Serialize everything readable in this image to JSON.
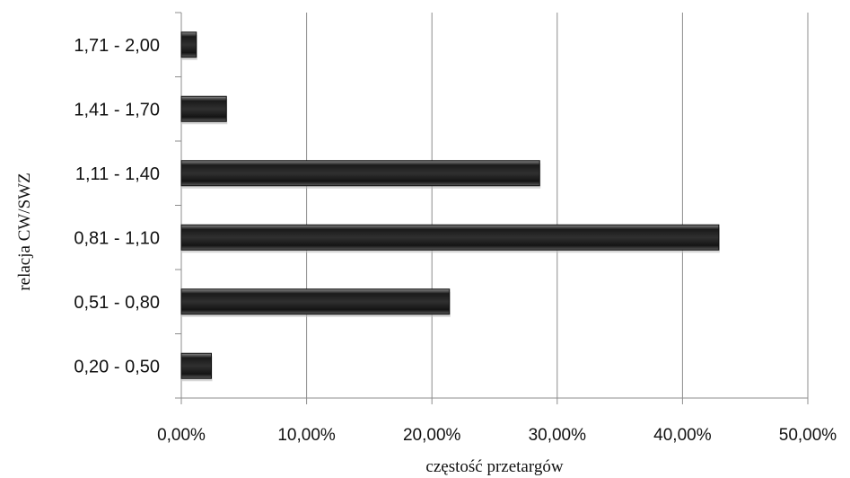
{
  "chart_data": {
    "type": "bar",
    "orientation": "horizontal",
    "title": "",
    "xlabel": "częstość przetargów",
    "ylabel": "relacja CW/SWZ",
    "categories": [
      "0,20 - 0,50",
      "0,51 - 0,80",
      "0,81 - 1,10",
      "1,11 - 1,40",
      "1,41 - 1,70",
      "1,71 - 2,00"
    ],
    "values": [
      2.4,
      21.4,
      42.9,
      28.6,
      3.6,
      1.2
    ],
    "xlim": [
      0,
      50
    ],
    "xticks": [
      0,
      10,
      20,
      30,
      40,
      50
    ],
    "xtick_labels": [
      "0,00%",
      "10,00%",
      "20,00%",
      "30,00%",
      "40,00%",
      "50,00%"
    ],
    "grid": "vertical",
    "legend": "none",
    "bar_color": "#2a2a2a",
    "grid_color": "#8c8c8c"
  }
}
